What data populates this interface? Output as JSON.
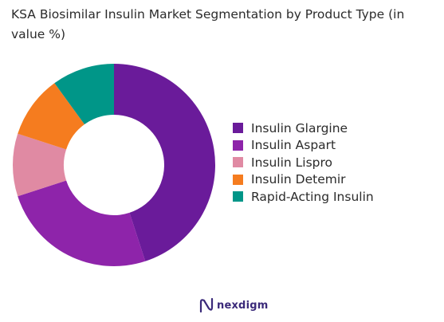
{
  "chart_data": {
    "type": "pie",
    "title": "KSA Biosimilar Insulin Market Segmentation by Product Type (in value %)",
    "categories": [
      "Insulin Glargine",
      "Insulin Aspart",
      "Insulin Lispro",
      "Insulin Detemir",
      "Rapid-Acting Insulin"
    ],
    "values": [
      45,
      25,
      10,
      10,
      10
    ],
    "colors": [
      "#6a1b9a",
      "#8e24aa",
      "#e08aa3",
      "#f57c1f",
      "#009688"
    ],
    "donut": true,
    "legend_position": "right"
  },
  "brand": {
    "name": "nexdigm",
    "logo_icon": "nexdigm-logo-icon",
    "color": "#3b2a7a"
  }
}
